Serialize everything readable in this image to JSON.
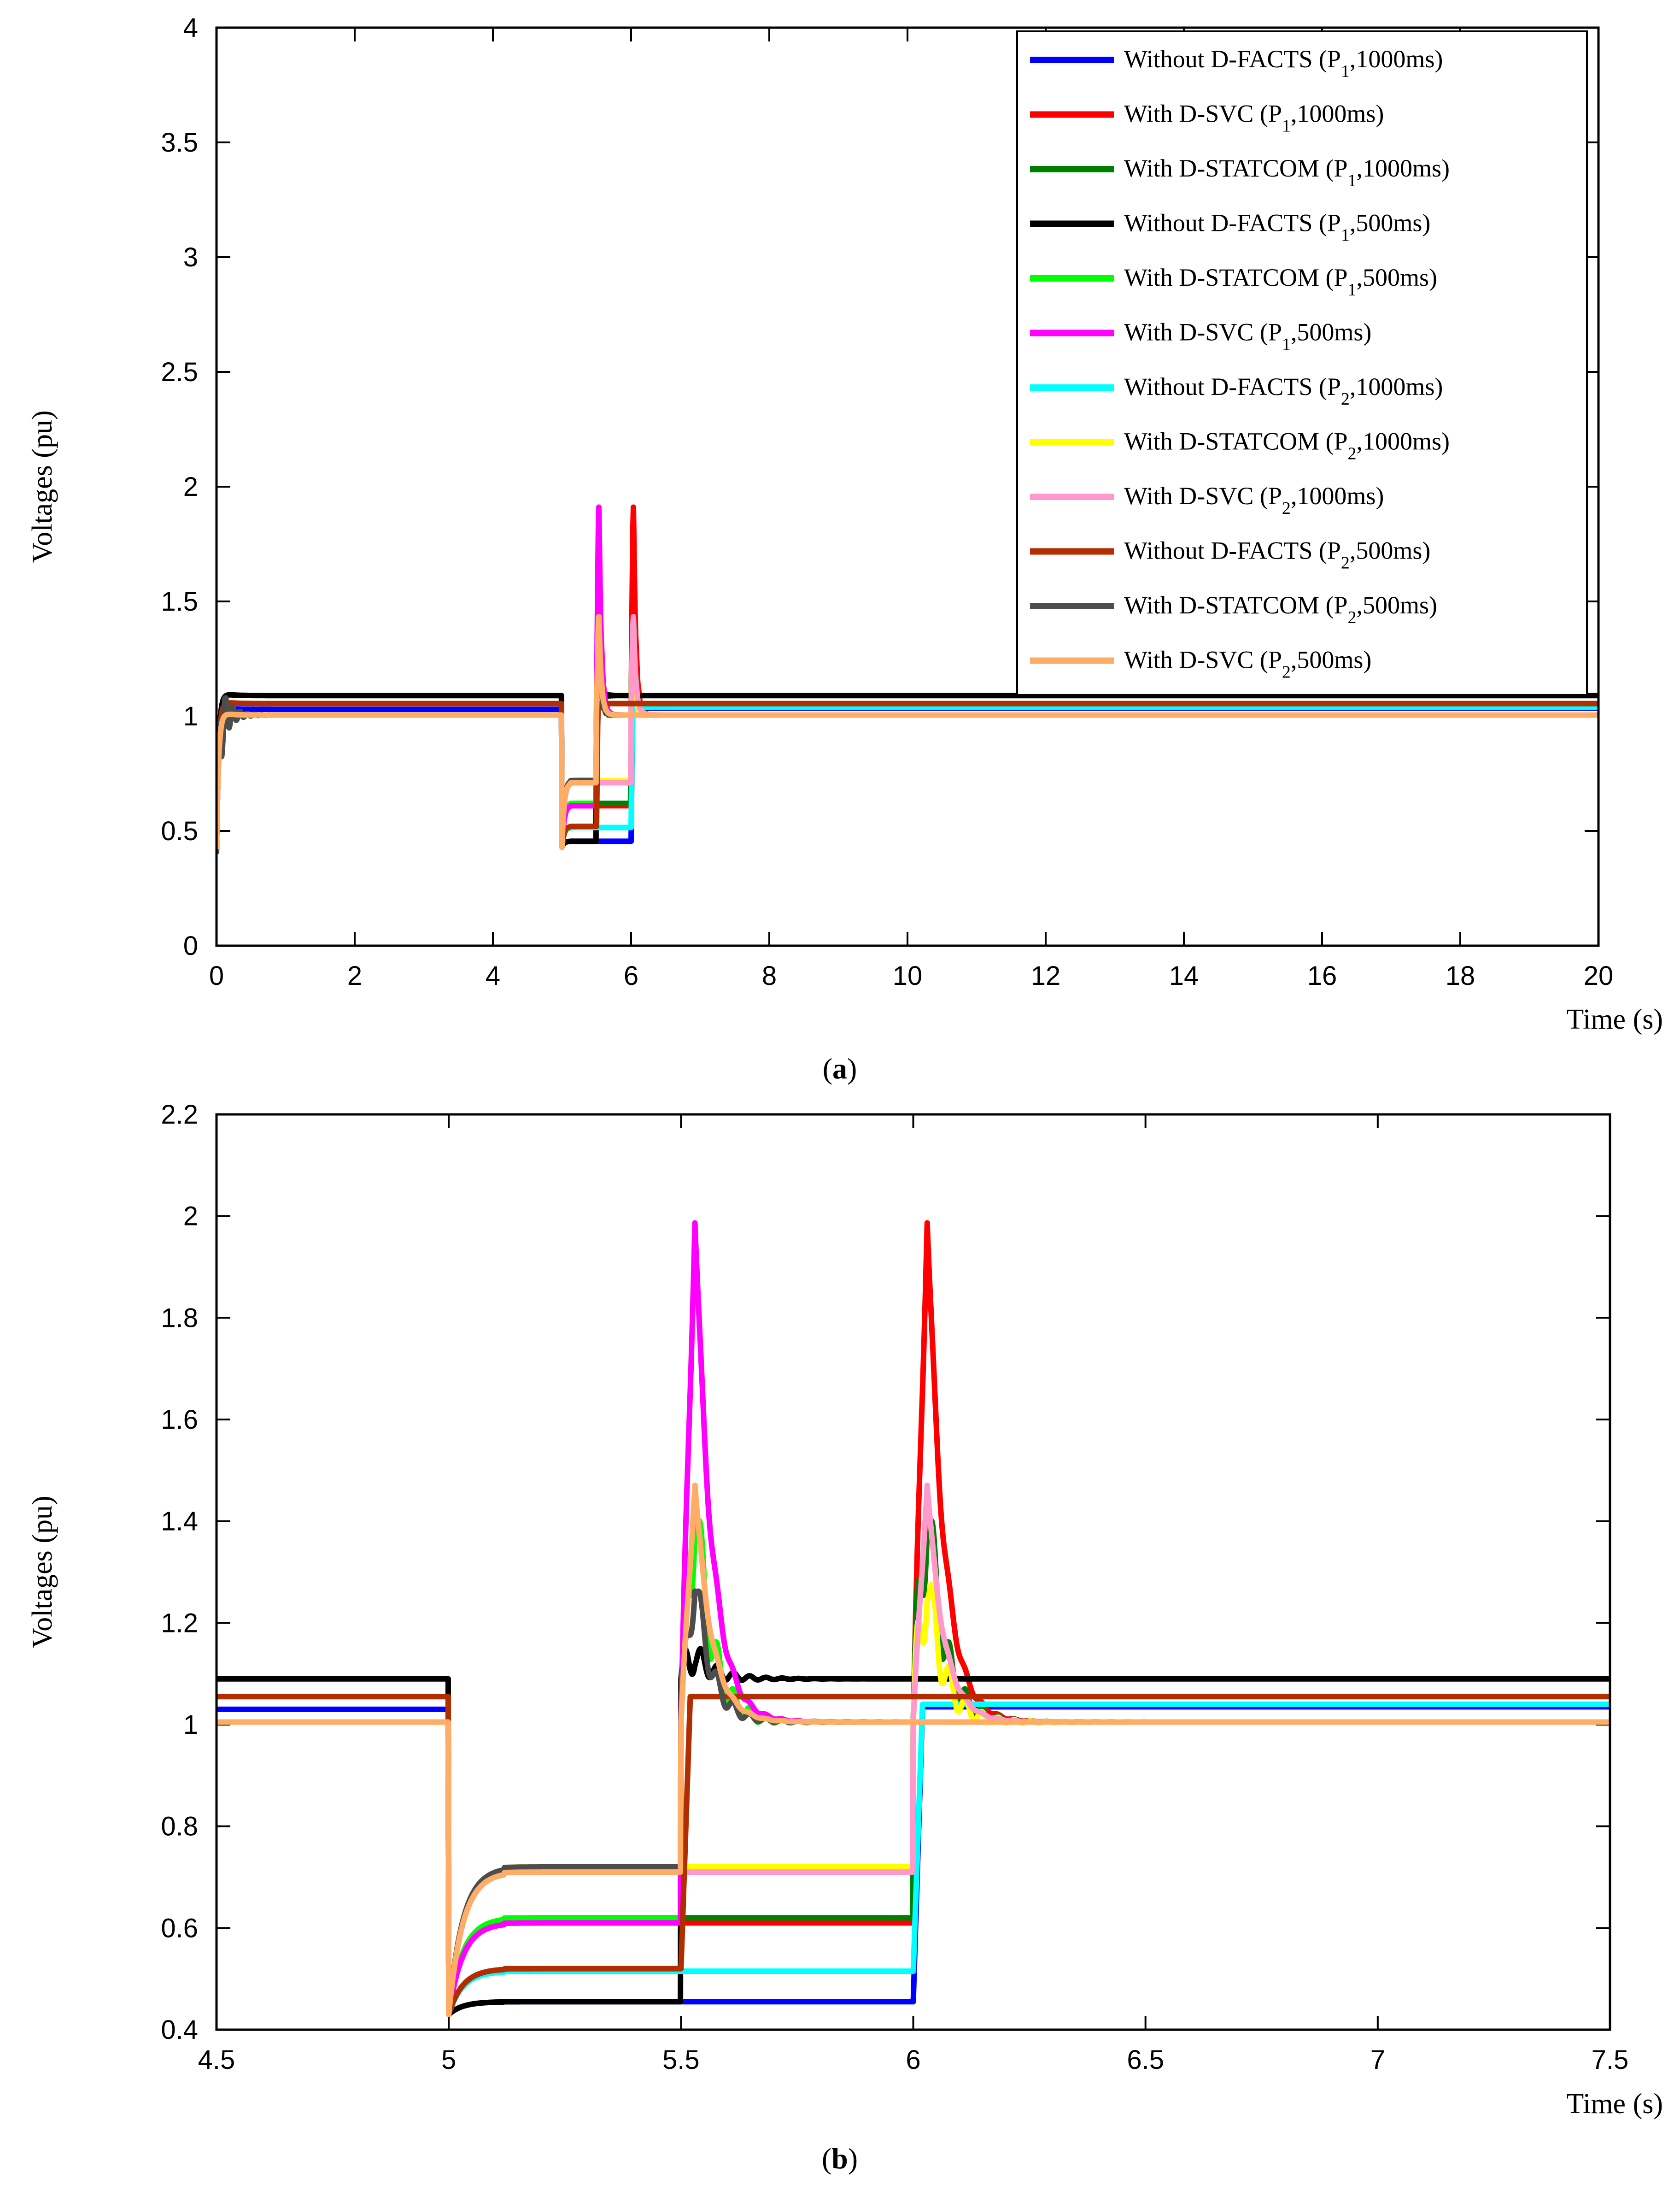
{
  "chart_data": [
    {
      "id": "a",
      "type": "line",
      "caption_open": "(",
      "caption_letter": "a",
      "caption_close": ")",
      "xlabel": "Time (s)",
      "ylabel": "Voltages (pu)",
      "xlim": [
        0,
        20
      ],
      "ylim": [
        0,
        4
      ],
      "xticks": [
        0,
        2,
        4,
        6,
        8,
        10,
        12,
        14,
        16,
        18,
        20
      ],
      "yticks": [
        0,
        0.5,
        1,
        1.5,
        2,
        2.5,
        3,
        3.5,
        4
      ],
      "ytick_labels": [
        "0",
        "0.5",
        "1",
        "1.5",
        "2",
        "2.5",
        "3",
        "3.5",
        "4"
      ],
      "legend_position": "top-right",
      "legend": [
        {
          "key": "s1",
          "pre": "Without D-FACTS (P",
          "sub": "1",
          "post": ",1000ms)"
        },
        {
          "key": "s2",
          "pre": "With D-SVC (P",
          "sub": "1",
          "post": ",1000ms)"
        },
        {
          "key": "s3",
          "pre": "With D-STATCOM (P",
          "sub": "1",
          "post": ",1000ms)"
        },
        {
          "key": "s4",
          "pre": "Without D-FACTS (P",
          "sub": "1",
          "post": ",500ms)"
        },
        {
          "key": "s5",
          "pre": "With D-STATCOM (P",
          "sub": "1",
          "post": ",500ms)"
        },
        {
          "key": "s6",
          "pre": "With D-SVC (P",
          "sub": "1",
          "post": ",500ms)"
        },
        {
          "key": "s7",
          "pre": "Without D-FACTS (P",
          "sub": "2",
          "post": ",1000ms)"
        },
        {
          "key": "s8",
          "pre": "With D-STATCOM (P",
          "sub": "2",
          "post": ",1000ms)"
        },
        {
          "key": "s9",
          "pre": "With D-SVC (P",
          "sub": "2",
          "post": ",1000ms)"
        },
        {
          "key": "s10",
          "pre": "Without D-FACTS (P",
          "sub": "2",
          "post": ",500ms)"
        },
        {
          "key": "s11",
          "pre": "With D-STATCOM (P",
          "sub": "2",
          "post": ",500ms)"
        },
        {
          "key": "s12",
          "pre": "With D-SVC (P",
          "sub": "2",
          "post": ",500ms)"
        }
      ]
    },
    {
      "id": "b",
      "type": "line",
      "caption_open": "(",
      "caption_letter": "b",
      "caption_close": ")",
      "xlabel": "Time (s)",
      "ylabel": "Voltages (pu)",
      "xlim": [
        4.5,
        7.5
      ],
      "ylim": [
        0.4,
        2.2
      ],
      "xticks": [
        4.5,
        5,
        5.5,
        6,
        6.5,
        7,
        7.5
      ],
      "xtick_labels": [
        "4.5",
        "5",
        "5.5",
        "6",
        "6.5",
        "7",
        "7.5"
      ],
      "yticks": [
        0.4,
        0.6,
        0.8,
        1,
        1.2,
        1.4,
        1.6,
        1.8,
        2,
        2.2
      ],
      "ytick_labels": [
        "0.4",
        "0.6",
        "0.8",
        "1",
        "1.2",
        "1.4",
        "1.6",
        "1.8",
        "2",
        "2.2"
      ]
    }
  ],
  "series": [
    {
      "key": "s1",
      "color": "#0000ff",
      "fault": [
        5.0,
        6.0
      ],
      "pre": 1.03,
      "dip": 0.455,
      "post": 1.035,
      "peak": null,
      "osc": 0
    },
    {
      "key": "s2",
      "color": "#ff0000",
      "fault": [
        5.0,
        6.0
      ],
      "pre": 1.005,
      "dip": 0.61,
      "post": 1.005,
      "peak": 2.01,
      "osc": 0.05
    },
    {
      "key": "s3",
      "color": "#008000",
      "fault": [
        5.0,
        6.0
      ],
      "pre": 1.005,
      "dip": 0.62,
      "post": 1.005,
      "peak": 1.45,
      "osc": 0.15
    },
    {
      "key": "s4",
      "color": "#000000",
      "fault": [
        5.0,
        5.5
      ],
      "pre": 1.09,
      "dip": 0.455,
      "post": 1.09,
      "peak": 1.14,
      "osc": 0.05
    },
    {
      "key": "s5",
      "color": "#00ff00",
      "fault": [
        5.0,
        5.5
      ],
      "pre": 1.005,
      "dip": 0.62,
      "post": 1.005,
      "peak": 1.45,
      "osc": 0.15
    },
    {
      "key": "s6",
      "color": "#ff00ff",
      "fault": [
        5.0,
        5.5
      ],
      "pre": 1.005,
      "dip": 0.61,
      "post": 1.005,
      "peak": 2.01,
      "osc": 0.05
    },
    {
      "key": "s7",
      "color": "#00ffff",
      "fault": [
        5.0,
        6.0
      ],
      "pre": 1.005,
      "dip": 0.515,
      "post": 1.04,
      "peak": null,
      "osc": 0
    },
    {
      "key": "s8",
      "color": "#ffff00",
      "fault": [
        5.0,
        6.0
      ],
      "pre": 1.005,
      "dip": 0.72,
      "post": 1.005,
      "peak": 1.3,
      "osc": 0.12
    },
    {
      "key": "s9",
      "color": "#ff99cc",
      "fault": [
        5.0,
        6.0
      ],
      "pre": 1.005,
      "dip": 0.71,
      "post": 1.005,
      "peak": 1.48,
      "osc": 0.02
    },
    {
      "key": "s10",
      "color": "#b22d00",
      "fault": [
        5.0,
        5.5
      ],
      "pre": 1.055,
      "dip": 0.52,
      "post": 1.055,
      "peak": null,
      "osc": 0
    },
    {
      "key": "s11",
      "color": "#4d4d4d",
      "fault": [
        5.0,
        5.5
      ],
      "pre": 1.005,
      "dip": 0.72,
      "post": 1.005,
      "peak": 1.3,
      "osc": 0.08
    },
    {
      "key": "s12",
      "color": "#ffad66",
      "fault": [
        5.0,
        5.5
      ],
      "pre": 1.005,
      "dip": 0.71,
      "post": 1.005,
      "peak": 1.48,
      "osc": 0.02
    }
  ]
}
